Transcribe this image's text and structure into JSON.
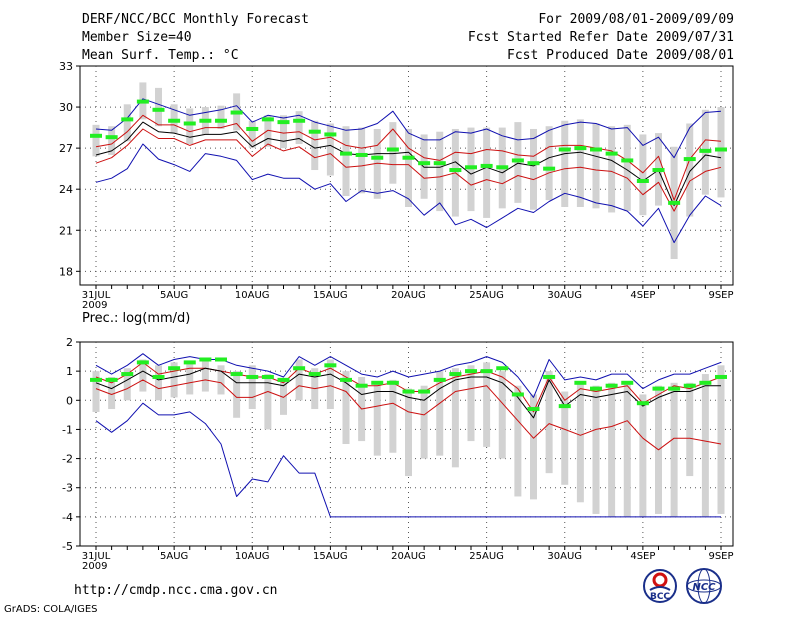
{
  "header": {
    "title": "DERF/NCC/BCC Monthly Forecast",
    "member_size": "Member Size=40",
    "variable1": "Mean Surf. Temp.: °C",
    "period": "For 2009/08/01-2009/09/09",
    "fcst_started": "Fcst Started Refer Date 2009/07/31",
    "fcst_produced": "Fcst Produced Date 2009/08/01"
  },
  "footer": {
    "url": "http://cmdp.ncc.cma.gov.cn",
    "grads": "GrADS: COLA/IGES",
    "logo_left_label": "BCC",
    "logo_right_label": "NCC"
  },
  "colors": {
    "box": "#d2d2d2",
    "green": "#22ee22",
    "blue": "#1010b0",
    "red": "#cc1010",
    "black": "#000000"
  },
  "chart_data": [
    {
      "type": "line",
      "title": "Mean Surf. Temp.: °C",
      "x": [
        0,
        1,
        2,
        3,
        4,
        5,
        6,
        7,
        8,
        9,
        10,
        11,
        12,
        13,
        14,
        15,
        16,
        17,
        18,
        19,
        20,
        21,
        22,
        23,
        24,
        25,
        26,
        27,
        28,
        29,
        30,
        31,
        32,
        33,
        34,
        35,
        36,
        37,
        38,
        39,
        40
      ],
      "xlim": [
        0,
        40
      ],
      "ylim": [
        17,
        33
      ],
      "yticks": [
        18,
        21,
        24,
        27,
        30,
        33
      ],
      "xtick_labels": [
        {
          "x": 0,
          "label": "31JUL",
          "sub": "2009"
        },
        {
          "x": 5,
          "label": "5AUG"
        },
        {
          "x": 10,
          "label": "10AUG"
        },
        {
          "x": 15,
          "label": "15AUG"
        },
        {
          "x": 20,
          "label": "20AUG"
        },
        {
          "x": 25,
          "label": "25AUG"
        },
        {
          "x": 30,
          "label": "30AUG"
        },
        {
          "x": 35,
          "label": "4SEP"
        },
        {
          "x": 40,
          "label": "9SEP"
        }
      ],
      "series": [
        {
          "name": "max",
          "color": "blue",
          "values": [
            28.4,
            28.3,
            29.2,
            30.6,
            30.2,
            29.8,
            29.4,
            29.6,
            29.8,
            30.1,
            28.9,
            29.4,
            29.2,
            29.4,
            28.9,
            28.6,
            28.3,
            28.4,
            28.8,
            29.7,
            28.1,
            27.6,
            27.6,
            28.2,
            28.1,
            28.4,
            27.9,
            27.6,
            27.7,
            28.3,
            28.7,
            28.9,
            28.8,
            28.4,
            28.5,
            27.2,
            27.8,
            26.3,
            28.5,
            29.6,
            29.7
          ]
        },
        {
          "name": "upper",
          "color": "red",
          "values": [
            27.1,
            27.3,
            28.2,
            29.4,
            28.7,
            28.7,
            28.2,
            28.5,
            28.5,
            28.8,
            27.5,
            28.3,
            28.1,
            28.2,
            27.6,
            27.8,
            27.2,
            27.0,
            27.2,
            28.4,
            27.0,
            26.3,
            26.1,
            26.7,
            26.6,
            26.9,
            26.8,
            26.5,
            26.4,
            27.1,
            27.2,
            27.2,
            27.0,
            26.8,
            26.1,
            25.2,
            26.4,
            23.2,
            26.2,
            27.6,
            27.5
          ]
        },
        {
          "name": "mean",
          "color": "black",
          "values": [
            26.5,
            26.8,
            27.6,
            28.9,
            28.2,
            28.1,
            27.8,
            28.0,
            28.0,
            28.2,
            27.1,
            27.7,
            27.5,
            27.7,
            27.0,
            27.2,
            26.6,
            26.5,
            26.6,
            26.6,
            26.7,
            25.6,
            25.6,
            26.0,
            25.1,
            25.6,
            25.2,
            25.9,
            25.7,
            26.3,
            26.6,
            26.7,
            26.4,
            26.1,
            25.4,
            24.6,
            25.4,
            22.8,
            25.3,
            26.5,
            26.3
          ]
        },
        {
          "name": "lower",
          "color": "red",
          "values": [
            25.9,
            26.3,
            27.2,
            28.4,
            27.7,
            27.7,
            27.2,
            27.6,
            27.6,
            27.6,
            26.4,
            27.3,
            26.8,
            27.1,
            26.3,
            26.6,
            25.6,
            25.7,
            25.9,
            25.8,
            25.8,
            24.8,
            24.9,
            25.2,
            24.3,
            24.7,
            24.4,
            25.0,
            24.7,
            25.2,
            25.5,
            25.6,
            25.4,
            25.3,
            24.8,
            23.6,
            24.5,
            22.4,
            24.6,
            25.3,
            25.6
          ]
        },
        {
          "name": "min",
          "color": "blue",
          "values": [
            24.5,
            24.8,
            25.5,
            27.3,
            26.2,
            25.8,
            25.3,
            26.6,
            26.4,
            26.1,
            24.7,
            25.1,
            24.8,
            24.8,
            24.0,
            24.4,
            23.1,
            23.9,
            23.7,
            23.9,
            23.3,
            22.1,
            23.0,
            21.4,
            21.8,
            21.2,
            21.9,
            22.6,
            22.3,
            23.1,
            23.7,
            23.4,
            23.0,
            22.8,
            22.4,
            21.3,
            22.6,
            20.1,
            22.1,
            23.5,
            22.8
          ]
        },
        {
          "name": "climatology",
          "color": "green",
          "marker": "dash",
          "values": [
            27.9,
            27.8,
            29.1,
            30.4,
            29.8,
            29.0,
            28.8,
            29.0,
            29.0,
            29.6,
            28.4,
            29.1,
            28.9,
            29.0,
            28.2,
            28.0,
            26.6,
            26.5,
            26.3,
            26.9,
            26.3,
            25.9,
            25.9,
            25.4,
            25.6,
            25.7,
            25.6,
            26.1,
            25.9,
            25.5,
            26.9,
            27.0,
            26.9,
            26.6,
            26.1,
            24.6,
            25.4,
            23.0,
            26.2,
            26.8,
            26.9
          ]
        }
      ],
      "boxes": {
        "name": "member spread",
        "high": [
          28.7,
          28.6,
          30.2,
          31.8,
          31.4,
          30.2,
          29.9,
          30.0,
          30.1,
          31.0,
          29.0,
          29.4,
          29.4,
          29.7,
          29.0,
          28.8,
          28.6,
          28.5,
          28.4,
          28.9,
          28.4,
          28.0,
          28.2,
          28.4,
          28.5,
          28.5,
          28.5,
          28.9,
          28.4,
          28.6,
          29.0,
          29.1,
          28.8,
          28.6,
          28.7,
          28.0,
          28.1,
          27.1,
          28.8,
          29.8,
          30.0
        ],
        "low": [
          26.4,
          26.5,
          27.5,
          29.1,
          28.6,
          28.1,
          27.3,
          28.0,
          28.4,
          28.3,
          27.0,
          27.1,
          27.0,
          27.3,
          25.4,
          25.0,
          23.5,
          23.7,
          23.3,
          24.4,
          22.7,
          23.3,
          22.4,
          22.0,
          22.4,
          21.9,
          22.6,
          23.0,
          22.5,
          23.2,
          22.7,
          22.7,
          22.6,
          22.3,
          22.4,
          22.1,
          22.8,
          18.9,
          22.0,
          23.6,
          23.4
        ]
      }
    },
    {
      "type": "line",
      "title": "Prec.: log(mm/d)",
      "x": [
        0,
        1,
        2,
        3,
        4,
        5,
        6,
        7,
        8,
        9,
        10,
        11,
        12,
        13,
        14,
        15,
        16,
        17,
        18,
        19,
        20,
        21,
        22,
        23,
        24,
        25,
        26,
        27,
        28,
        29,
        30,
        31,
        32,
        33,
        34,
        35,
        36,
        37,
        38,
        39,
        40
      ],
      "xlim": [
        0,
        40
      ],
      "ylim": [
        -5,
        2
      ],
      "yticks": [
        -5,
        -4,
        -3,
        -2,
        -1,
        0,
        1,
        2
      ],
      "xtick_labels": [
        {
          "x": 0,
          "label": "31JUL",
          "sub": "2009"
        },
        {
          "x": 5,
          "label": "5AUG"
        },
        {
          "x": 10,
          "label": "10AUG"
        },
        {
          "x": 15,
          "label": "15AUG"
        },
        {
          "x": 20,
          "label": "20AUG"
        },
        {
          "x": 25,
          "label": "25AUG"
        },
        {
          "x": 30,
          "label": "30AUG"
        },
        {
          "x": 35,
          "label": "4SEP"
        },
        {
          "x": 40,
          "label": "9SEP"
        }
      ],
      "series": [
        {
          "name": "max",
          "color": "blue",
          "values": [
            1.2,
            0.9,
            1.2,
            1.6,
            1.2,
            1.4,
            1.5,
            1.4,
            1.4,
            1.2,
            1.1,
            1.0,
            0.8,
            1.5,
            1.2,
            1.5,
            1.2,
            0.9,
            0.8,
            1.0,
            0.8,
            0.9,
            1.0,
            1.2,
            1.3,
            1.5,
            1.3,
            0.8,
            0.1,
            1.4,
            0.7,
            0.8,
            0.7,
            0.9,
            0.9,
            0.4,
            0.7,
            0.9,
            0.9,
            1.1,
            1.3
          ]
        },
        {
          "name": "upper",
          "color": "red",
          "values": [
            0.8,
            0.6,
            0.9,
            1.3,
            0.9,
            1.0,
            1.1,
            1.1,
            1.0,
            0.9,
            0.8,
            0.8,
            0.6,
            1.1,
            0.9,
            1.1,
            0.8,
            0.5,
            0.5,
            0.6,
            0.3,
            0.3,
            0.6,
            0.8,
            0.9,
            1.0,
            0.8,
            0.4,
            -0.4,
            0.8,
            0.0,
            0.4,
            0.3,
            0.4,
            0.5,
            -0.1,
            0.2,
            0.5,
            0.4,
            0.6,
            0.8
          ]
        },
        {
          "name": "mean",
          "color": "black",
          "values": [
            0.6,
            0.4,
            0.7,
            1.0,
            0.7,
            0.8,
            0.9,
            1.1,
            1.0,
            0.6,
            0.6,
            0.6,
            0.5,
            0.9,
            0.8,
            0.9,
            0.6,
            0.2,
            0.3,
            0.3,
            0.1,
            0.0,
            0.4,
            0.7,
            0.8,
            0.8,
            0.6,
            0.1,
            -0.6,
            0.7,
            -0.2,
            0.2,
            0.1,
            0.2,
            0.3,
            -0.2,
            0.1,
            0.3,
            0.3,
            0.5,
            0.5
          ]
        },
        {
          "name": "lower",
          "color": "red",
          "values": [
            0.4,
            0.2,
            0.4,
            0.7,
            0.4,
            0.5,
            0.6,
            0.7,
            0.6,
            0.1,
            0.1,
            0.3,
            0.1,
            0.5,
            0.4,
            0.5,
            0.3,
            -0.3,
            -0.2,
            -0.1,
            -0.4,
            -0.5,
            -0.1,
            0.3,
            0.4,
            0.5,
            -0.1,
            -0.7,
            -1.3,
            -0.8,
            -1.0,
            -1.2,
            -1.0,
            -0.9,
            -0.7,
            -1.3,
            -1.7,
            -1.3,
            -1.3,
            -1.4,
            -1.5
          ]
        },
        {
          "name": "min",
          "color": "blue",
          "values": [
            -0.7,
            -1.1,
            -0.7,
            -0.1,
            -0.5,
            -0.5,
            -0.4,
            -0.8,
            -1.5,
            -3.3,
            -2.7,
            -2.8,
            -1.9,
            -2.5,
            -2.5,
            -4.0,
            -4.0,
            -4.0,
            -4.0,
            -4.0,
            -4.0,
            -4.0,
            -4.0,
            -4.0,
            -4.0,
            -4.0,
            -4.0,
            -4.0,
            -4.0,
            -4.0,
            -4.0,
            -4.0,
            -4.0,
            -4.0,
            -4.0,
            -4.0,
            -4.0,
            -4.0,
            -4.0,
            -4.0,
            -4.0
          ]
        },
        {
          "name": "climatology",
          "color": "green",
          "marker": "dash",
          "values": [
            0.7,
            0.7,
            0.9,
            1.3,
            0.8,
            1.1,
            1.3,
            1.4,
            1.4,
            0.9,
            0.8,
            0.8,
            0.7,
            1.1,
            0.9,
            1.2,
            0.7,
            0.5,
            0.6,
            0.6,
            0.3,
            0.3,
            0.7,
            0.9,
            1.0,
            1.0,
            1.1,
            0.2,
            -0.3,
            0.8,
            -0.2,
            0.6,
            0.4,
            0.5,
            0.6,
            -0.1,
            0.4,
            0.4,
            0.5,
            0.6,
            0.8
          ]
        }
      ],
      "boxes": {
        "name": "member spread",
        "high": [
          1.0,
          0.8,
          1.1,
          1.4,
          1.2,
          1.3,
          1.3,
          1.4,
          1.2,
          1.0,
          1.2,
          0.9,
          0.7,
          1.4,
          1.1,
          1.4,
          1.0,
          0.8,
          0.6,
          0.7,
          0.4,
          0.5,
          1.0,
          1.1,
          1.2,
          1.3,
          1.0,
          0.5,
          0.2,
          1.0,
          0.3,
          0.6,
          0.5,
          0.6,
          0.6,
          0.2,
          0.5,
          0.6,
          0.6,
          0.9,
          1.2
        ],
        "low": [
          -0.4,
          -0.3,
          0.0,
          0.3,
          0.0,
          0.1,
          0.2,
          0.3,
          0.2,
          -0.6,
          -0.3,
          -1.0,
          -0.5,
          0.0,
          -0.3,
          -0.3,
          -1.5,
          -1.4,
          -1.9,
          -1.8,
          -2.6,
          -2.0,
          -1.9,
          -2.3,
          -1.4,
          -1.6,
          -2.0,
          -3.3,
          -3.4,
          -2.5,
          -2.9,
          -3.5,
          -3.9,
          -4.0,
          -4.0,
          -4.0,
          -3.9,
          -4.0,
          -2.6,
          -4.0,
          -3.9
        ]
      }
    }
  ]
}
